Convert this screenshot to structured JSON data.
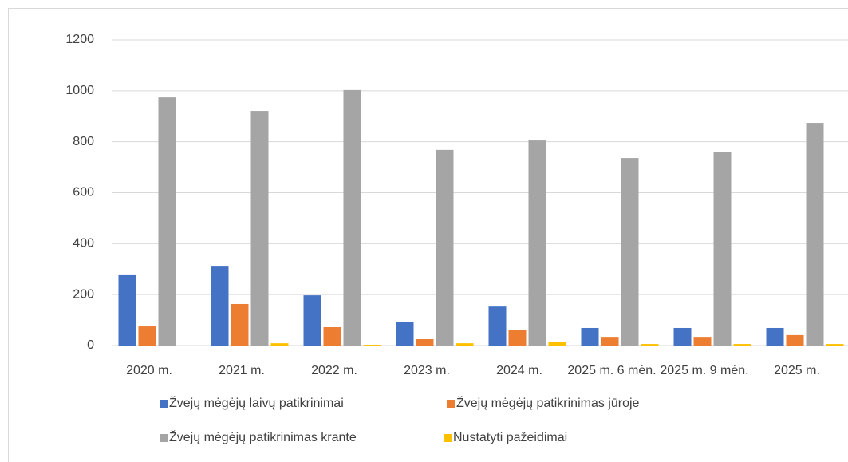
{
  "chart_data": {
    "type": "bar",
    "categories": [
      "2020 m.",
      "2021 m.",
      "2022 m.",
      "2023 m.",
      "2024 m.",
      "2025 m. 6 mėn.",
      "2025 m. 9 mėn.",
      "2025 m."
    ],
    "series": [
      {
        "name": "Žvejų mėgėjų laivų patikrinimai",
        "color": "#4472c4",
        "values": [
          276,
          313,
          197,
          91,
          153,
          69,
          69,
          69
        ]
      },
      {
        "name": "Žvejų mėgėjų patikrinimas jūroje",
        "color": "#ed7d31",
        "values": [
          75,
          163,
          72,
          25,
          60,
          34,
          34,
          41
        ]
      },
      {
        "name": "Žvejų mėgėjų patikrinimas krante",
        "color": "#a5a5a5",
        "values": [
          974,
          921,
          1003,
          768,
          805,
          736,
          761,
          874
        ]
      },
      {
        "name": "Nustatyti pažeidimai",
        "color": "#ffc000",
        "values": [
          0,
          9,
          3,
          9,
          15,
          6,
          6,
          6
        ]
      }
    ],
    "ylim": [
      0,
      1200
    ],
    "yticks": [
      0,
      200,
      400,
      600,
      800,
      1000,
      1200
    ],
    "grid": true,
    "legend": "bottom"
  }
}
